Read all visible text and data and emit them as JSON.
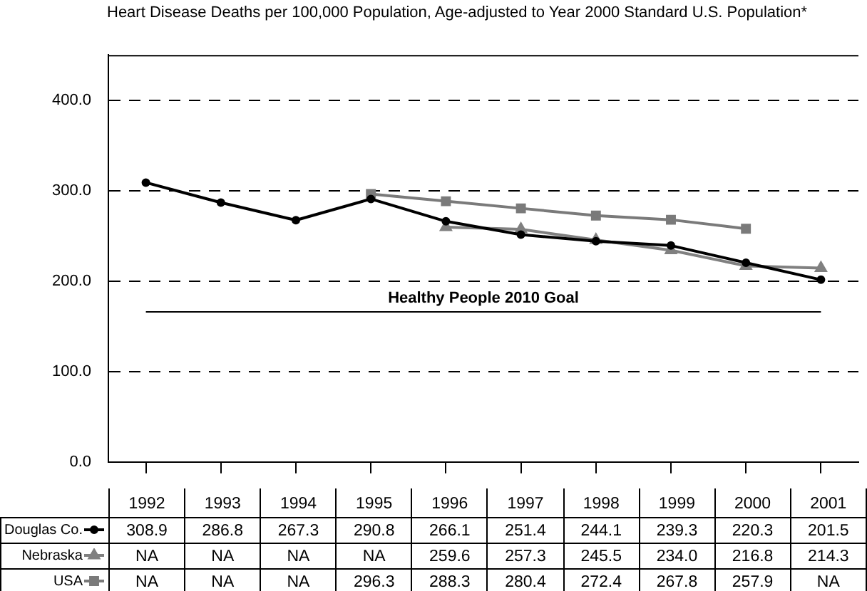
{
  "chart_data": {
    "type": "line",
    "title": "Heart Disease Deaths per 100,000 Population, Age-adjusted to Year 2000 Standard U.S. Population*",
    "categories": [
      "1992",
      "1993",
      "1994",
      "1995",
      "1996",
      "1997",
      "1998",
      "1999",
      "2000",
      "2001"
    ],
    "series": [
      {
        "name": "Douglas Co.",
        "color": "#000000",
        "marker": "circle",
        "values": [
          308.9,
          286.8,
          267.3,
          290.8,
          266.1,
          251.4,
          244.1,
          239.3,
          220.3,
          201.5
        ],
        "value_labels": [
          "308.9",
          "286.8",
          "267.3",
          "290.8",
          "266.1",
          "251.4",
          "244.1",
          "239.3",
          "220.3",
          "201.5"
        ]
      },
      {
        "name": "Nebraska",
        "color": "#808080",
        "marker": "triangle",
        "values": [
          null,
          null,
          null,
          null,
          259.6,
          257.3,
          245.5,
          234.0,
          216.8,
          214.3
        ],
        "value_labels": [
          "NA",
          "NA",
          "NA",
          "NA",
          "259.6",
          "257.3",
          "245.5",
          "234.0",
          "216.8",
          "214.3"
        ]
      },
      {
        "name": "USA",
        "color": "#7a7a7a",
        "marker": "square",
        "values": [
          null,
          null,
          null,
          296.3,
          288.3,
          280.4,
          272.4,
          267.8,
          257.9,
          null
        ],
        "value_labels": [
          "NA",
          "NA",
          "NA",
          "296.3",
          "288.3",
          "280.4",
          "272.4",
          "267.8",
          "257.9",
          "NA"
        ]
      }
    ],
    "ylim": [
      0,
      450
    ],
    "yticks": [
      {
        "value": 0,
        "label": "0.0"
      },
      {
        "value": 100,
        "label": "100.0"
      },
      {
        "value": 200,
        "label": "200.0"
      },
      {
        "value": 300,
        "label": "300.0"
      },
      {
        "value": 400,
        "label": "400.0"
      }
    ],
    "grid": "y",
    "legend": "bottom",
    "line_style": "solid",
    "ref_lines": [
      {
        "axis": "y",
        "value": 166,
        "label": "Healthy People 2010 Goal",
        "color": "#000000"
      }
    ]
  }
}
